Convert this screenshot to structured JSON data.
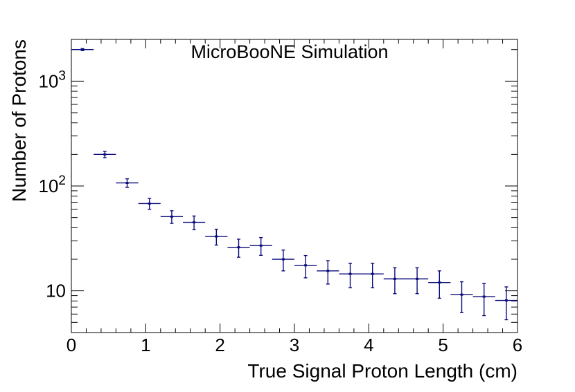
{
  "chart_data": {
    "type": "scatter",
    "title": "MicroBooNE Simulation",
    "xlabel": "True Signal Proton Length (cm)",
    "ylabel": "Number of Protons",
    "xlim": [
      0,
      6
    ],
    "ylim": [
      4,
      2500
    ],
    "yscale": "log",
    "x_ticks": [
      "0",
      "1",
      "2",
      "3",
      "4",
      "5",
      "6"
    ],
    "y_ticks": [
      {
        "value": 10,
        "base": "10",
        "exp": ""
      },
      {
        "value": 100,
        "base": "10",
        "exp": "2"
      },
      {
        "value": 1000,
        "base": "10",
        "exp": "3"
      }
    ],
    "bin_width": 0.3,
    "series": [
      {
        "name": "MicroBooNE Simulation",
        "color": "#0a0a7a",
        "points": [
          {
            "x": 0.15,
            "y": 2000,
            "err": 45
          },
          {
            "x": 0.45,
            "y": 200,
            "err": 14
          },
          {
            "x": 0.75,
            "y": 107,
            "err": 10
          },
          {
            "x": 1.05,
            "y": 68,
            "err": 8
          },
          {
            "x": 1.35,
            "y": 51,
            "err": 7
          },
          {
            "x": 1.65,
            "y": 45,
            "err": 6.7
          },
          {
            "x": 1.95,
            "y": 33,
            "err": 5.7
          },
          {
            "x": 2.25,
            "y": 26,
            "err": 5.1
          },
          {
            "x": 2.55,
            "y": 27,
            "err": 5.2
          },
          {
            "x": 2.85,
            "y": 20,
            "err": 4.5
          },
          {
            "x": 3.15,
            "y": 17.5,
            "err": 4.2
          },
          {
            "x": 3.45,
            "y": 15.5,
            "err": 3.9
          },
          {
            "x": 3.75,
            "y": 14.5,
            "err": 3.8
          },
          {
            "x": 4.05,
            "y": 14.5,
            "err": 3.8
          },
          {
            "x": 4.35,
            "y": 13,
            "err": 3.6
          },
          {
            "x": 4.65,
            "y": 13,
            "err": 3.6
          },
          {
            "x": 4.95,
            "y": 12,
            "err": 3.5
          },
          {
            "x": 5.25,
            "y": 9.2,
            "err": 3.0
          },
          {
            "x": 5.55,
            "y": 8.8,
            "err": 3.0
          },
          {
            "x": 5.85,
            "y": 8.1,
            "err": 2.8
          }
        ]
      }
    ]
  }
}
